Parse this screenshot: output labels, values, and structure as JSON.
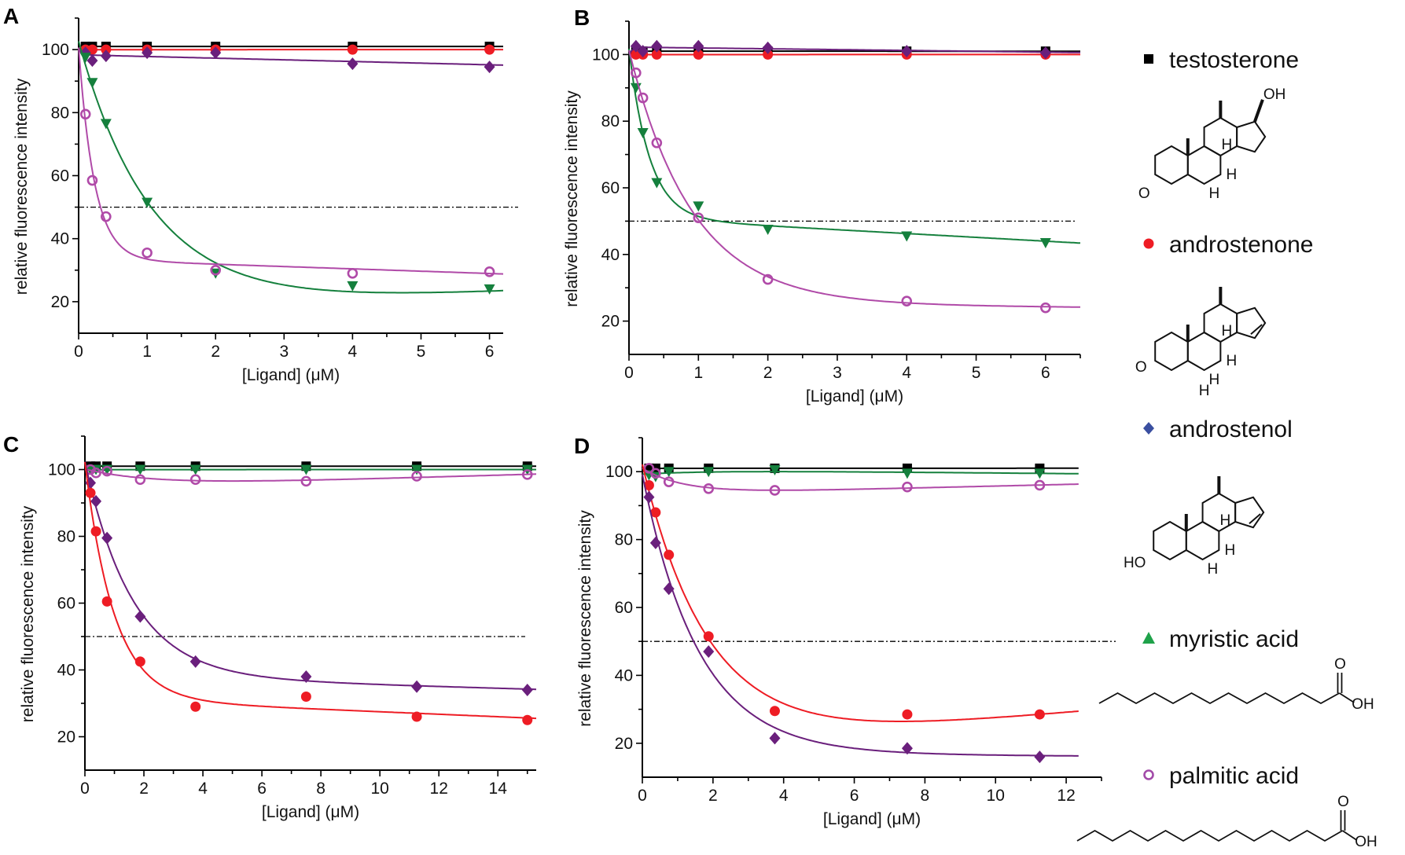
{
  "legend": {
    "items": [
      {
        "label": "testosterone",
        "marker": "square",
        "color": "#000000",
        "structure": "steroid",
        "structure_labels": [
          "OH",
          "H",
          "H",
          "H",
          "O"
        ]
      },
      {
        "label": "androstenone",
        "marker": "circle",
        "color": "#ee1c24",
        "structure": "steroid-ene",
        "structure_labels": [
          "H",
          "H",
          "H",
          "O",
          "H"
        ]
      },
      {
        "label": "androstenol",
        "marker": "diamond",
        "color": "#3a4fa0",
        "structure": "steroid-ene",
        "structure_labels": [
          "H",
          "H",
          "H",
          "HO"
        ]
      },
      {
        "label": "myristic acid",
        "marker": "triangle-up",
        "color": "#1fa24a",
        "structure": "chain",
        "structure_labels": [
          "O",
          "OH"
        ]
      },
      {
        "label": "palmitic acid",
        "marker": "open-circle",
        "color": "#a24aa8",
        "structure": "chain",
        "structure_labels": [
          "O",
          "OH"
        ]
      }
    ]
  },
  "chart_data": [
    {
      "panel": "A",
      "type": "scatter",
      "xlabel": "[Ligand] (μM)",
      "ylabel": "relative fluorescence intensity",
      "xlim": [
        0,
        6.2
      ],
      "ylim": [
        10,
        110
      ],
      "xticks": [
        "0",
        "1",
        "2",
        "3",
        "4",
        "5",
        "6"
      ],
      "yticks": [
        "20",
        "40",
        "60",
        "80",
        "100"
      ],
      "reference_line": 50,
      "x": [
        0.1,
        0.2,
        0.4,
        1,
        2,
        4,
        6
      ],
      "series": [
        {
          "name": "testosterone",
          "color": "#000000",
          "marker": "square",
          "values": [
            101,
            101,
            101,
            101,
            101,
            101,
            101
          ]
        },
        {
          "name": "androstenone",
          "color": "#ee1c24",
          "marker": "circle",
          "values": [
            100,
            100,
            100,
            100,
            100,
            100,
            100
          ]
        },
        {
          "name": "androstenol",
          "color": "#6a1f7c",
          "marker": "diamond",
          "values": [
            99,
            96.5,
            98,
            99,
            99,
            95.5,
            94.5
          ]
        },
        {
          "name": "myristic acid",
          "color": "#15803d",
          "marker": "triangle-down",
          "values": [
            97.5,
            89.5,
            76.5,
            51.5,
            29,
            25,
            24
          ]
        },
        {
          "name": "palmitic acid",
          "color": "#b04aa8",
          "marker": "open-circle",
          "values": [
            79.5,
            58.5,
            47,
            35.5,
            30,
            29,
            29.5
          ]
        }
      ]
    },
    {
      "panel": "B",
      "type": "scatter",
      "xlabel": "[Ligand] (μM)",
      "ylabel": "relative fluorescence intensity",
      "xlim": [
        0,
        6.5
      ],
      "ylim": [
        10,
        110
      ],
      "xticks": [
        "0",
        "1",
        "2",
        "3",
        "4",
        "5",
        "6"
      ],
      "yticks": [
        "20",
        "40",
        "60",
        "80",
        "100"
      ],
      "reference_line": 50,
      "x": [
        0.1,
        0.2,
        0.4,
        1,
        2,
        4,
        6
      ],
      "series": [
        {
          "name": "testosterone",
          "color": "#000000",
          "marker": "square",
          "values": [
            101,
            101,
            101,
            101,
            101,
            101,
            101
          ]
        },
        {
          "name": "androstenone",
          "color": "#ee1c24",
          "marker": "circle",
          "values": [
            100,
            100,
            100,
            100,
            100,
            100,
            100
          ]
        },
        {
          "name": "androstenol",
          "color": "#6a1f7c",
          "marker": "diamond",
          "values": [
            102.5,
            101,
            102.5,
            102.5,
            102,
            101,
            100.5
          ]
        },
        {
          "name": "myristic acid",
          "color": "#15803d",
          "marker": "triangle-down",
          "values": [
            90,
            76.5,
            61.5,
            54.5,
            47.5,
            45.5,
            43.5
          ]
        },
        {
          "name": "palmitic acid",
          "color": "#b04aa8",
          "marker": "open-circle",
          "values": [
            94.5,
            87,
            73.5,
            51,
            32.5,
            26,
            24
          ]
        }
      ]
    },
    {
      "panel": "C",
      "type": "scatter",
      "xlabel": "[Ligand] (μM)",
      "ylabel": "relative fluorescence intensity",
      "xlim": [
        0,
        15.3
      ],
      "ylim": [
        10,
        110
      ],
      "xticks": [
        "0",
        "2",
        "4",
        "6",
        "8",
        "10",
        "12",
        "14"
      ],
      "yticks": [
        "20",
        "40",
        "60",
        "80",
        "100"
      ],
      "reference_line": 50,
      "x": [
        0.1875,
        0.375,
        0.75,
        1.875,
        3.75,
        7.5,
        11.25,
        15
      ],
      "series": [
        {
          "name": "testosterone",
          "color": "#000000",
          "marker": "square",
          "values": [
            101,
            101,
            101,
            101,
            101,
            101,
            101,
            101
          ]
        },
        {
          "name": "myristic acid",
          "color": "#15803d",
          "marker": "triangle-down",
          "values": [
            100,
            100,
            100,
            100,
            100,
            100,
            100,
            100
          ]
        },
        {
          "name": "palmitic acid",
          "color": "#b04aa8",
          "marker": "open-circle",
          "values": [
            100,
            99,
            99.5,
            97,
            97,
            96.5,
            98,
            98.5
          ]
        },
        {
          "name": "androstenol",
          "color": "#6a1f7c",
          "marker": "diamond",
          "values": [
            96,
            90.5,
            79.5,
            56,
            42.5,
            38,
            35,
            34
          ]
        },
        {
          "name": "androstenone",
          "color": "#ee1c24",
          "marker": "circle",
          "values": [
            93,
            81.5,
            60.5,
            42.5,
            29,
            32,
            26,
            25
          ]
        }
      ]
    },
    {
      "panel": "D",
      "type": "scatter",
      "xlabel": "[Ligand] (μM)",
      "ylabel": "relative fluorescence intensity",
      "xlim": [
        0,
        13
      ],
      "ylim": [
        10,
        110
      ],
      "xticks": [
        "0",
        "2",
        "4",
        "6",
        "8",
        "10",
        "12"
      ],
      "yticks": [
        "20",
        "40",
        "60",
        "80",
        "100"
      ],
      "reference_line": 50,
      "x": [
        0.1875,
        0.375,
        0.75,
        1.875,
        3.75,
        7.5,
        11.25
      ],
      "series": [
        {
          "name": "testosterone",
          "color": "#000000",
          "marker": "square",
          "values": [
            101,
            101,
            101,
            101,
            101,
            101,
            101
          ]
        },
        {
          "name": "myristic acid",
          "color": "#15803d",
          "marker": "triangle-down",
          "values": [
            99,
            98.5,
            100,
            100,
            100.5,
            99.5,
            99.5
          ]
        },
        {
          "name": "palmitic acid",
          "color": "#b04aa8",
          "marker": "open-circle",
          "values": [
            101,
            99.5,
            97,
            95,
            94.5,
            95.5,
            96
          ]
        },
        {
          "name": "androstenone",
          "color": "#ee1c24",
          "marker": "circle",
          "values": [
            96,
            88,
            75.5,
            51.5,
            29.5,
            28.5,
            28.5
          ]
        },
        {
          "name": "androstenol",
          "color": "#6a1f7c",
          "marker": "diamond",
          "values": [
            92.5,
            79,
            65.5,
            47,
            21.5,
            18.5,
            16
          ]
        }
      ]
    }
  ]
}
